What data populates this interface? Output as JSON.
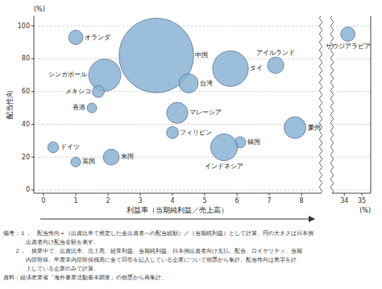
{
  "chart_data": [
    {
      "type": "scatter",
      "xlabel": "利益率（当期純利益／売上高）",
      "ylabel": "配当性向",
      "annotations": [
        "(%)"
      ],
      "notes": [
        "備考：１．　配当性向＝（出資比率で推定した全出資者への配当総額）／（当期純利益）として計算。円の大きさは日本側",
        "　　　　出資者向け配当金額を表す。",
        "　　２．　操業中で、出資比率、売上高、経常利益、当期純利益、日本側出資者向け支払、配当、ロイヤリティ、当期",
        "　　　　内部留保、年度末内部留保残高に全て回答を記入している企業について個票から集計。配当性向は黒字を計",
        "　　　　上している企業のみで計算。",
        "資料：経済産業省「海外事業活動基本調査」の個票から再集計。"
      ],
      "labels": [
        "オランダ",
        "シンガポール",
        "メキシコ",
        "香港",
        "ドイツ",
        "英国",
        "米国",
        "中国",
        "台湾",
        "マレーシア",
        "フィリピン",
        "タイ",
        "韓国",
        "インドネシア",
        "アイルランド",
        "豪州"
      ],
      "x": [
        1.0,
        1.9,
        1.7,
        1.5,
        0.3,
        1.0,
        2.1,
        3.5,
        4.5,
        4.15,
        4.0,
        5.8,
        6.1,
        5.6,
        7.2,
        7.8
      ],
      "values": [
        93,
        70,
        60,
        50,
        26,
        17,
        20,
        82,
        65,
        47,
        35,
        74,
        29,
        26,
        76,
        38
      ],
      "sizes": [
        130,
        650,
        90,
        60,
        75,
        60,
        160,
        3500,
        230,
        280,
        90,
        800,
        80,
        450,
        170,
        300
      ],
      "color": "#8ab4d4",
      "xlim": [
        -0.3,
        8.6
      ],
      "ylim": [
        -2,
        106
      ],
      "xticks": [
        0,
        1,
        2,
        3,
        4,
        5,
        6,
        7,
        8
      ],
      "yticks": [
        0,
        20,
        40,
        60,
        80,
        100
      ],
      "grid": true
    },
    {
      "type": "scatter",
      "annotations": [
        "(%)"
      ],
      "labels": [
        "サウジアラビア"
      ],
      "x": [
        34.2
      ],
      "values": [
        95
      ],
      "sizes": [
        130
      ],
      "color": "#8ab4d4",
      "xlim": [
        33.3,
        35.5
      ],
      "ylim": [
        -2,
        106
      ],
      "xticks": [
        34,
        35
      ],
      "yticks": [
        0,
        20,
        40,
        60,
        80,
        100
      ],
      "grid": true,
      "tick_labels": "x"
    }
  ]
}
